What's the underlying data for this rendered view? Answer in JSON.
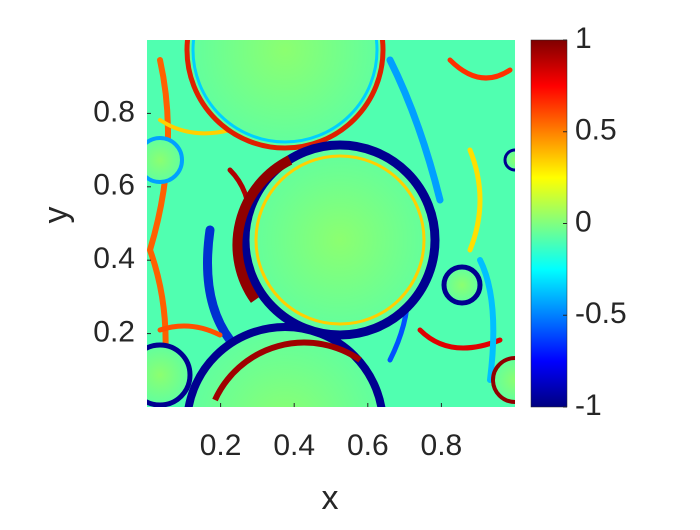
{
  "chart_data": {
    "type": "heatmap",
    "xlabel": "x",
    "ylabel": "y",
    "xlim": [
      0,
      1
    ],
    "xticks": [
      0.2,
      0.4,
      0.6,
      0.8
    ],
    "ylim": [
      0,
      1
    ],
    "yticks": [
      0.2,
      0.4,
      0.6,
      0.8
    ],
    "colormap": "jet",
    "colorbar": {
      "clim": [
        -1,
        1
      ],
      "ticks": [
        -1,
        -0.5,
        0,
        0.5,
        1
      ]
    }
  }
}
